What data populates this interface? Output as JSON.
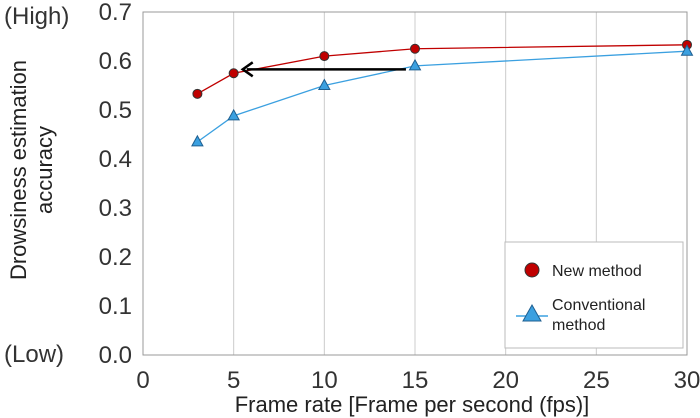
{
  "chart_data": {
    "type": "line",
    "x": [
      3,
      5,
      10,
      15,
      30
    ],
    "series": [
      {
        "name": "New method",
        "values": [
          0.533,
          0.575,
          0.61,
          0.625,
          0.633
        ],
        "color": "#c00000",
        "marker": "circle"
      },
      {
        "name": "Conventional method",
        "name_lines": [
          "Conventional",
          "method"
        ],
        "values": [
          0.435,
          0.488,
          0.55,
          0.59,
          0.62
        ],
        "color": "#3ba0e0",
        "marker": "triangle"
      }
    ],
    "xlabel": "Frame rate [Frame per second (fps)]",
    "ylabel_lines": [
      "Drowsiness estimation",
      "accuracy"
    ],
    "xlim": [
      0,
      30
    ],
    "ylim": [
      0,
      0.7
    ],
    "xticks": [
      0,
      5,
      10,
      15,
      20,
      25,
      30
    ],
    "xtick_labels": [
      "0",
      "5",
      "10",
      "15",
      "20",
      "25",
      "30"
    ],
    "yticks": [
      0,
      0.1,
      0.2,
      0.3,
      0.4,
      0.5,
      0.6,
      0.7
    ],
    "ytick_labels": [
      "0.0",
      "0.1",
      "0.2",
      "0.3",
      "0.4",
      "0.5",
      "0.6",
      "0.7"
    ],
    "y_annotations": {
      "high": "(High)",
      "low": "(Low)"
    },
    "grid": "vertical",
    "legend_position": "bottom-right",
    "annotation_arrow": {
      "from": [
        14.5,
        0.583
      ],
      "to": [
        5.5,
        0.583
      ],
      "color": "#000000"
    }
  }
}
